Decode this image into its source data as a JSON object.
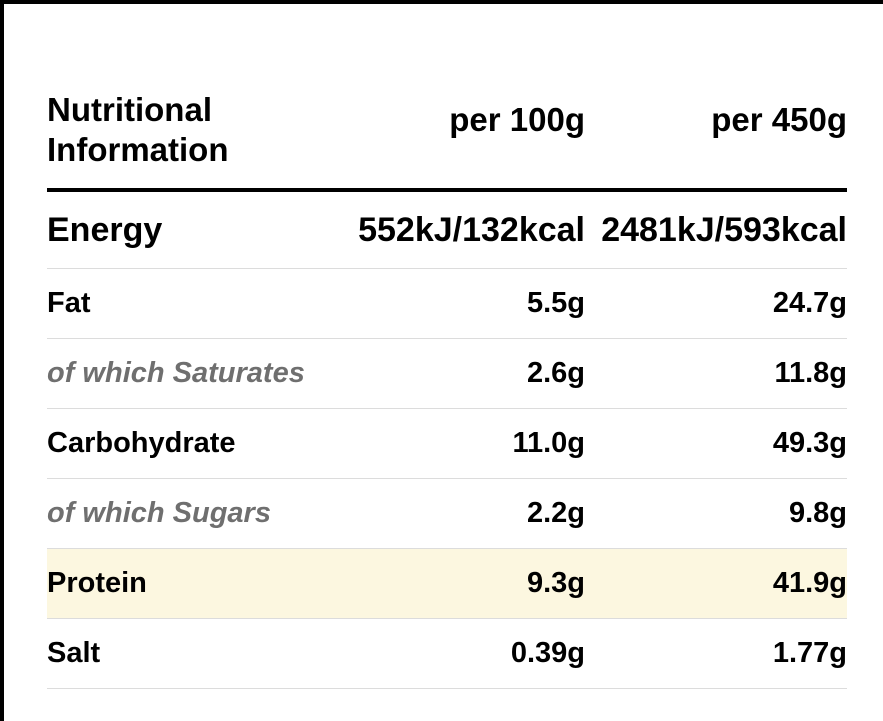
{
  "table": {
    "header": {
      "label_line1": "Nutritional",
      "label_line2": "Information",
      "col_per_100": "per 100g",
      "col_per_450": "per 450g"
    },
    "rows": [
      {
        "label": "Energy",
        "per_100": "552kJ/132kcal",
        "per_450": "2481kJ/593kcal"
      },
      {
        "label": "Fat",
        "per_100": "5.5g",
        "per_450": "24.7g"
      },
      {
        "label": "of which Saturates",
        "per_100": "2.6g",
        "per_450": "11.8g"
      },
      {
        "label": "Carbohydrate",
        "per_100": "11.0g",
        "per_450": "49.3g"
      },
      {
        "label": "of which Sugars",
        "per_100": "2.2g",
        "per_450": "9.8g"
      },
      {
        "label": "Protein",
        "per_100": "9.3g",
        "per_450": "41.9g"
      },
      {
        "label": "Salt",
        "per_100": "0.39g",
        "per_450": "1.77g"
      }
    ]
  },
  "colors": {
    "highlight_row": "#fcf7e0",
    "subtext": "#6f6f6f",
    "divider": "#dcdcdc",
    "border": "#000000"
  }
}
